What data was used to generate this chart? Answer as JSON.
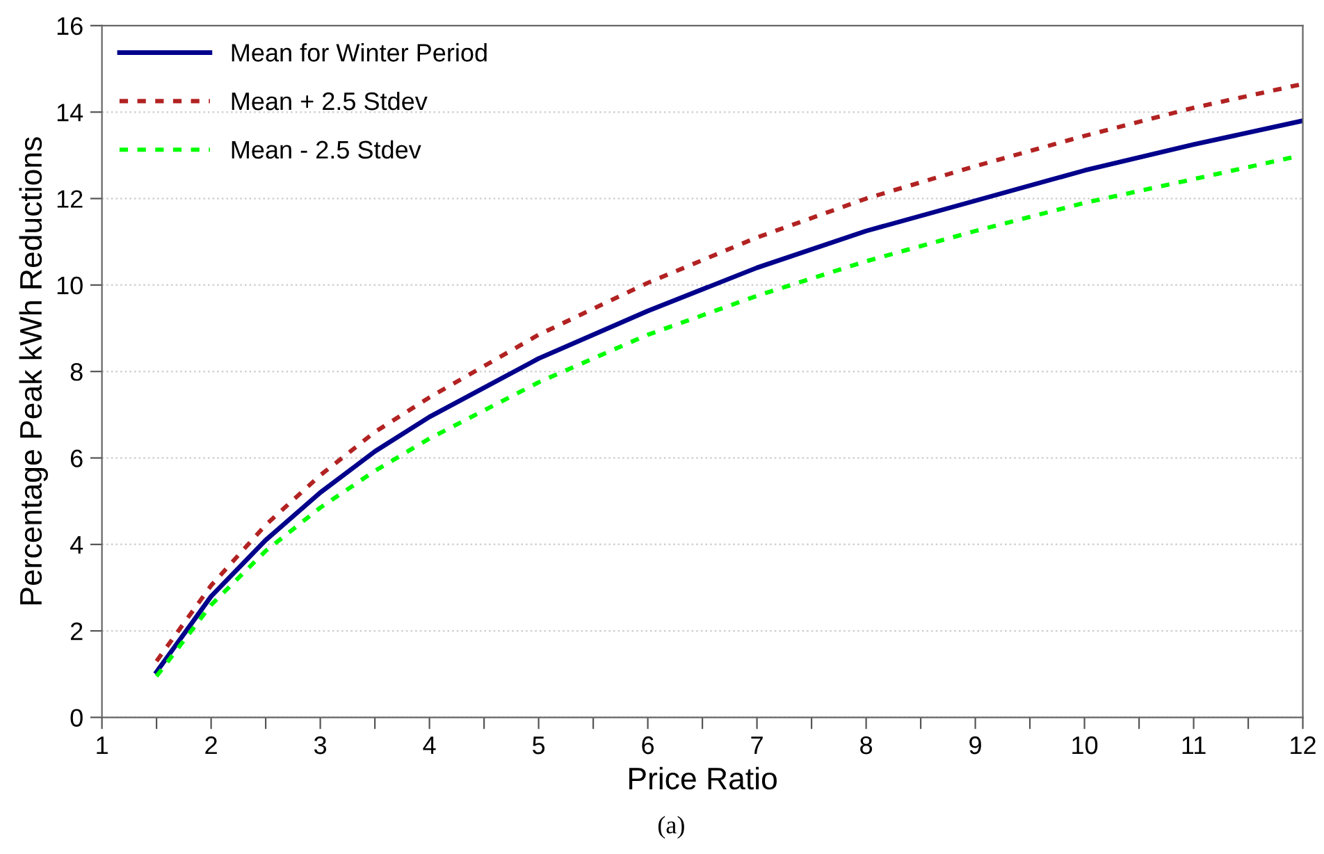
{
  "chart_data": {
    "type": "line",
    "xlabel": "Price Ratio",
    "ylabel": "Percentage Peak kWh Reductions",
    "annotations": [
      "(a)"
    ],
    "xlim": [
      1,
      12
    ],
    "ylim": [
      0,
      16
    ],
    "xticks": [
      1,
      {
        "value": 1.5,
        "label": null
      },
      2,
      {
        "value": 2.5,
        "label": null
      },
      3,
      {
        "value": 3.5,
        "label": null
      },
      4,
      {
        "value": 4.5,
        "label": null
      },
      5,
      {
        "value": 5.5,
        "label": null
      },
      6,
      {
        "value": 6.5,
        "label": null
      },
      7,
      {
        "value": 7.5,
        "label": null
      },
      8,
      {
        "value": 8.5,
        "label": null
      },
      9,
      {
        "value": 9.5,
        "label": null
      },
      10,
      {
        "value": 10.5,
        "label": null
      },
      11,
      {
        "value": 11.5,
        "label": null
      },
      12
    ],
    "yticks": [
      0,
      2,
      4,
      6,
      8,
      10,
      12,
      14,
      16
    ],
    "grid": "y",
    "legend": "top left",
    "marker": "none",
    "series": [
      {
        "name": "Mean for Winter Period",
        "color": "#00008b",
        "line_style": "solid",
        "x": [
          1.5,
          2,
          2.5,
          3,
          3.5,
          4,
          5,
          6,
          7,
          8,
          9,
          10,
          11,
          12
        ],
        "values": [
          1.05,
          2.8,
          4.1,
          5.2,
          6.15,
          6.95,
          8.3,
          9.4,
          10.4,
          11.25,
          11.95,
          12.65,
          13.25,
          13.8
        ]
      },
      {
        "name": "Mean + 2.5 Stdev",
        "color": "#b22222",
        "line_style": "dotted",
        "x": [
          1.5,
          2,
          2.5,
          3,
          3.5,
          4,
          5,
          6,
          7,
          8,
          9,
          10,
          11,
          12
        ],
        "values": [
          1.3,
          3.05,
          4.45,
          5.6,
          6.6,
          7.4,
          8.85,
          10.05,
          11.1,
          12.0,
          12.75,
          13.45,
          14.1,
          14.65
        ]
      },
      {
        "name": "Mean - 2.5 Stdev",
        "color": "#00ff00",
        "line_style": "dotted",
        "x": [
          1.5,
          2,
          2.5,
          3,
          3.5,
          4,
          5,
          6,
          7,
          8,
          9,
          10,
          11,
          11.9
        ],
        "values": [
          0.95,
          2.6,
          3.85,
          4.85,
          5.7,
          6.45,
          7.75,
          8.85,
          9.75,
          10.55,
          11.25,
          11.9,
          12.45,
          12.95
        ]
      }
    ]
  }
}
